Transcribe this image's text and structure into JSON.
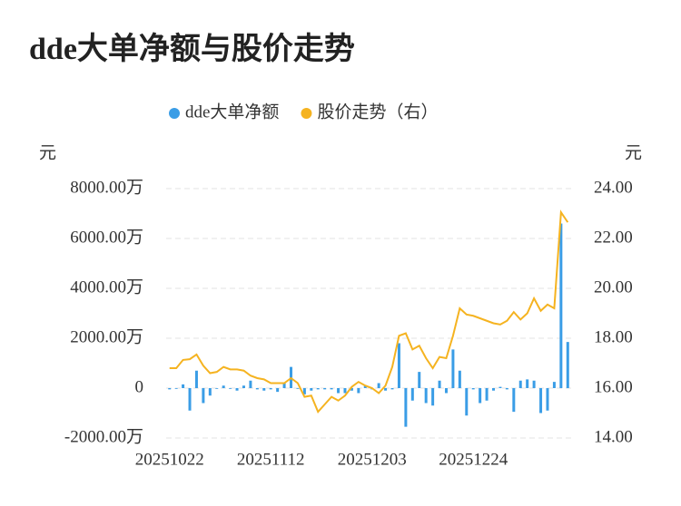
{
  "chart_data": {
    "type": "bar-line",
    "title": "dde大单净额与股价走势",
    "y_unit": "元",
    "y2_unit": "元",
    "categories": [
      "20251022",
      null,
      null,
      null,
      null,
      null,
      null,
      null,
      null,
      null,
      null,
      null,
      null,
      null,
      null,
      "20251112",
      null,
      null,
      null,
      null,
      null,
      null,
      null,
      null,
      null,
      null,
      null,
      null,
      null,
      null,
      "20251203",
      null,
      null,
      null,
      null,
      null,
      null,
      null,
      null,
      null,
      null,
      null,
      null,
      null,
      null,
      "20251224",
      null,
      null,
      null,
      null,
      null,
      null,
      null,
      null,
      null,
      null,
      null,
      null,
      null,
      null
    ],
    "series": [
      {
        "name": "dde大单净额",
        "type": "bar",
        "color": "#3a9de6",
        "values": [
          -50,
          0,
          150,
          -900,
          700,
          -600,
          -300,
          0,
          100,
          0,
          -100,
          100,
          300,
          -50,
          -100,
          -50,
          -150,
          200,
          850,
          0,
          -250,
          -100,
          -50,
          -50,
          -50,
          -200,
          -200,
          -100,
          -200,
          100,
          -50,
          200,
          -100,
          -50,
          1800,
          -1550,
          -500,
          650,
          -600,
          -700,
          300,
          -200,
          1550,
          700,
          -1100,
          -50,
          -600,
          -500,
          -100,
          50,
          -50,
          -950,
          300,
          350,
          300,
          -1000,
          -900,
          250,
          6600,
          1850
        ]
      },
      {
        "name": "股价走势（右）",
        "type": "line",
        "axis": "y2",
        "color": "#f5b320",
        "values": [
          16.8,
          16.8,
          17.13,
          17.16,
          17.35,
          16.9,
          16.6,
          16.65,
          16.85,
          16.75,
          16.75,
          16.7,
          16.5,
          16.4,
          16.35,
          16.2,
          16.2,
          16.2,
          16.4,
          16.2,
          15.65,
          15.7,
          15.05,
          15.35,
          15.65,
          15.5,
          15.7,
          16.05,
          16.25,
          16.1,
          16.0,
          15.8,
          16.1,
          16.85,
          18.1,
          18.2,
          17.55,
          17.7,
          17.2,
          16.8,
          17.25,
          17.2,
          18.1,
          19.2,
          18.95,
          18.9,
          18.8,
          18.7,
          18.6,
          18.55,
          18.7,
          19.05,
          18.75,
          19.0,
          19.6,
          19.1,
          19.35,
          19.2,
          23.05,
          22.65
        ]
      }
    ],
    "ylim": [
      -2000,
      8000
    ],
    "yticks": [
      {
        "value": -2000,
        "label": "-2000.00万"
      },
      0,
      {
        "value": 2000,
        "label": "2000.00万"
      },
      {
        "value": 4000,
        "label": "4000.00万"
      },
      {
        "value": 6000,
        "label": "6000.00万"
      },
      {
        "value": 8000,
        "label": "8000.00万"
      }
    ],
    "y2lim": [
      14,
      24
    ],
    "y2ticks": [
      {
        "value": 14,
        "label": "14.00"
      },
      {
        "value": 16,
        "label": "16.00"
      },
      {
        "value": 18,
        "label": "18.00"
      },
      {
        "value": 20,
        "label": "20.00"
      },
      {
        "value": 22,
        "label": "22.00"
      },
      {
        "value": 24,
        "label": "24.00"
      }
    ],
    "grid": true,
    "legend": "top"
  }
}
